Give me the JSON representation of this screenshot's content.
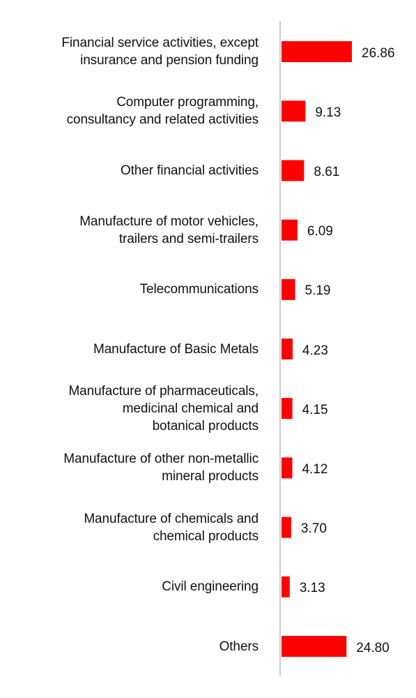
{
  "chart_data": {
    "type": "bar",
    "orientation": "horizontal",
    "categories": [
      "Financial service activities, except\ninsurance and pension funding",
      "Computer programming,\nconsultancy and related activities",
      "Other financial activities",
      "Manufacture of motor vehicles,\ntrailers and semi-trailers",
      "Telecommunications",
      "Manufacture of Basic Metals",
      "Manufacture of pharmaceuticals,\nmedicinal chemical and\nbotanical products",
      "Manufacture of other non-metallic\nmineral products",
      "Manufacture of chemicals and\nchemical products",
      "Civil engineering",
      "Others"
    ],
    "values": [
      26.86,
      9.13,
      8.61,
      6.09,
      5.19,
      4.23,
      4.15,
      4.12,
      3.7,
      3.13,
      24.8
    ],
    "value_labels": [
      "26.86",
      "9.13",
      "8.61",
      "6.09",
      "5.19",
      "4.23",
      "4.15",
      "4.12",
      "3.70",
      "3.13",
      "24.80"
    ],
    "title": "",
    "xlabel": "",
    "ylabel": "",
    "xlim": [
      0,
      26.86
    ],
    "grid": false,
    "legend": "none",
    "bar_color": "#ff0000",
    "axis_color": "#cccccc"
  }
}
